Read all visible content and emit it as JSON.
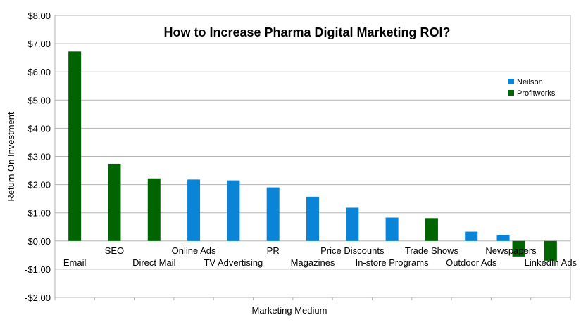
{
  "chart_data": {
    "type": "bar",
    "title": "How to Increase Pharma Digital Marketing ROI?",
    "xlabel": "Marketing Medium",
    "ylabel": "Return On Investment",
    "ylim": [
      -2,
      8
    ],
    "y_tick_labels": [
      "-$2.00",
      "-$1.00",
      "$0.00",
      "$1.00",
      "$2.00",
      "$3.00",
      "$4.00",
      "$5.00",
      "$6.00",
      "$7.00",
      "$8.00"
    ],
    "y_tick_values": [
      -2,
      -1,
      0,
      1,
      2,
      3,
      4,
      5,
      6,
      7,
      8
    ],
    "grid": true,
    "legend_position": "right",
    "categories": [
      "Email",
      "SEO",
      "Direct Mail",
      "Online Ads",
      "TV Advertising",
      "PR",
      "Magazines",
      "Price Discounts",
      "In-store Programs",
      "Trade Shows",
      "Outdoor Ads",
      "Newspapers",
      "LinkedIn Ads"
    ],
    "series": [
      {
        "name": "Neilson",
        "color": "#0a84d6",
        "values": [
          null,
          null,
          null,
          2.18,
          2.15,
          1.9,
          1.57,
          1.18,
          0.83,
          null,
          0.33,
          0.22,
          null
        ]
      },
      {
        "name": "Profitworks",
        "color": "#006400",
        "values": [
          6.72,
          2.74,
          2.22,
          null,
          null,
          null,
          null,
          null,
          null,
          0.81,
          null,
          -0.55,
          -0.7
        ]
      }
    ]
  }
}
